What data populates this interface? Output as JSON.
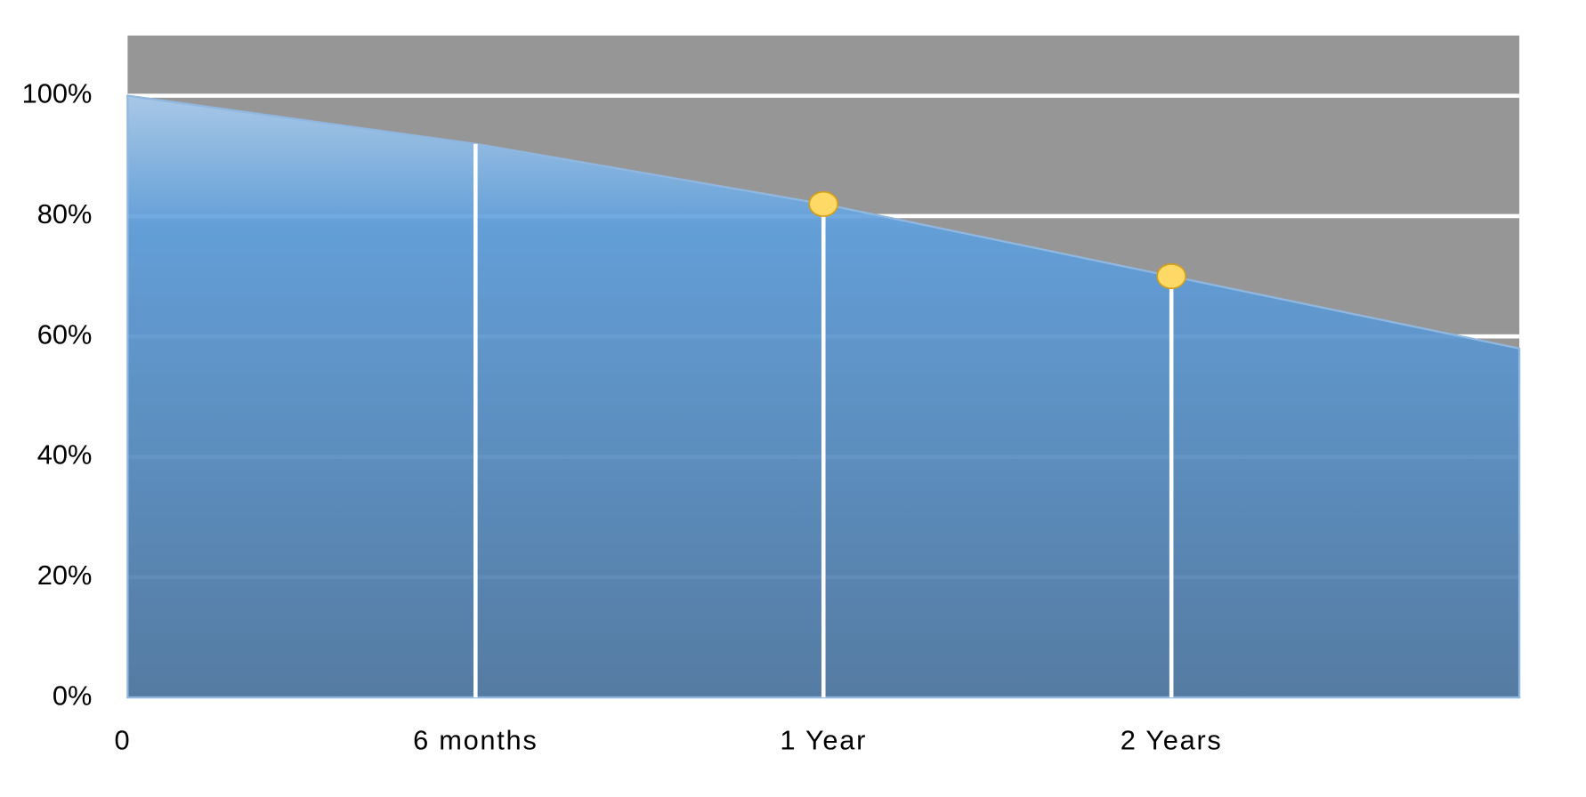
{
  "chart_data": {
    "type": "area",
    "categories": [
      "0",
      "6 months",
      "1 Year",
      "2 Years",
      null
    ],
    "series": [
      {
        "color": "#5b9bd5",
        "values": [
          100,
          92,
          82,
          70,
          58
        ],
        "markers": [
          false,
          false,
          true,
          true,
          false
        ],
        "marker_color": "#ffd966",
        "drop_lines": [
          false,
          true,
          true,
          true,
          false
        ]
      }
    ],
    "ylim": [
      0,
      110
    ],
    "yticks": [
      {
        "value": 0,
        "label": "0%"
      },
      {
        "value": 20,
        "label": "20%"
      },
      {
        "value": 40,
        "label": "40%"
      },
      {
        "value": 60,
        "label": "60%"
      },
      {
        "value": 80,
        "label": "80%"
      },
      {
        "value": 100,
        "label": "100%"
      }
    ],
    "grid": true,
    "background_color": "#969696"
  }
}
